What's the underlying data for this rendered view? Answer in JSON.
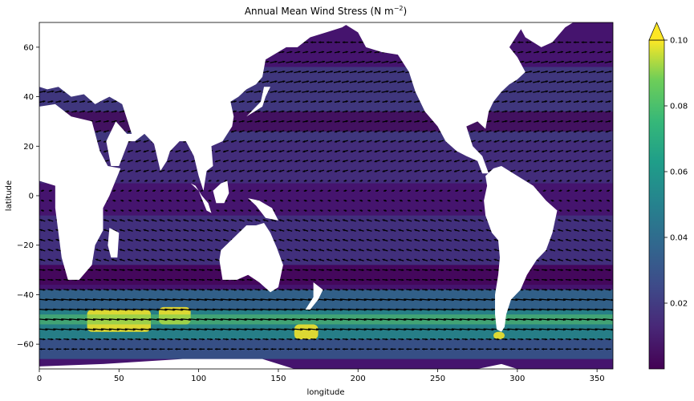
{
  "chart_data": {
    "type": "heatmap",
    "title_main": "Annual Mean Wind Stress (N m",
    "title_exp": "−2",
    "title_close": ")",
    "xlabel": "longitude",
    "ylabel": "latitude",
    "xlim": [
      0,
      360
    ],
    "ylim": [
      -70,
      70
    ],
    "x_ticks": [
      0,
      50,
      100,
      150,
      200,
      250,
      300,
      350
    ],
    "x_tick_labels": [
      "0",
      "50",
      "100",
      "150",
      "200",
      "250",
      "300",
      "350"
    ],
    "y_ticks": [
      60,
      40,
      20,
      0,
      -20,
      -40,
      -60
    ],
    "y_tick_labels": [
      "60",
      "40",
      "20",
      "0",
      "−20",
      "−40",
      "−60"
    ],
    "colorbar": {
      "colormap": "viridis",
      "range": [
        0.0,
        0.1
      ],
      "extend": "max",
      "ticks": [
        0.02,
        0.04,
        0.06,
        0.08,
        0.1
      ],
      "tick_labels": [
        "0.02",
        "0.04",
        "0.06",
        "0.08",
        "0.10"
      ]
    },
    "overlay": "quiver (wind stress vectors)",
    "land_color": "#ffffff",
    "grid": false
  }
}
